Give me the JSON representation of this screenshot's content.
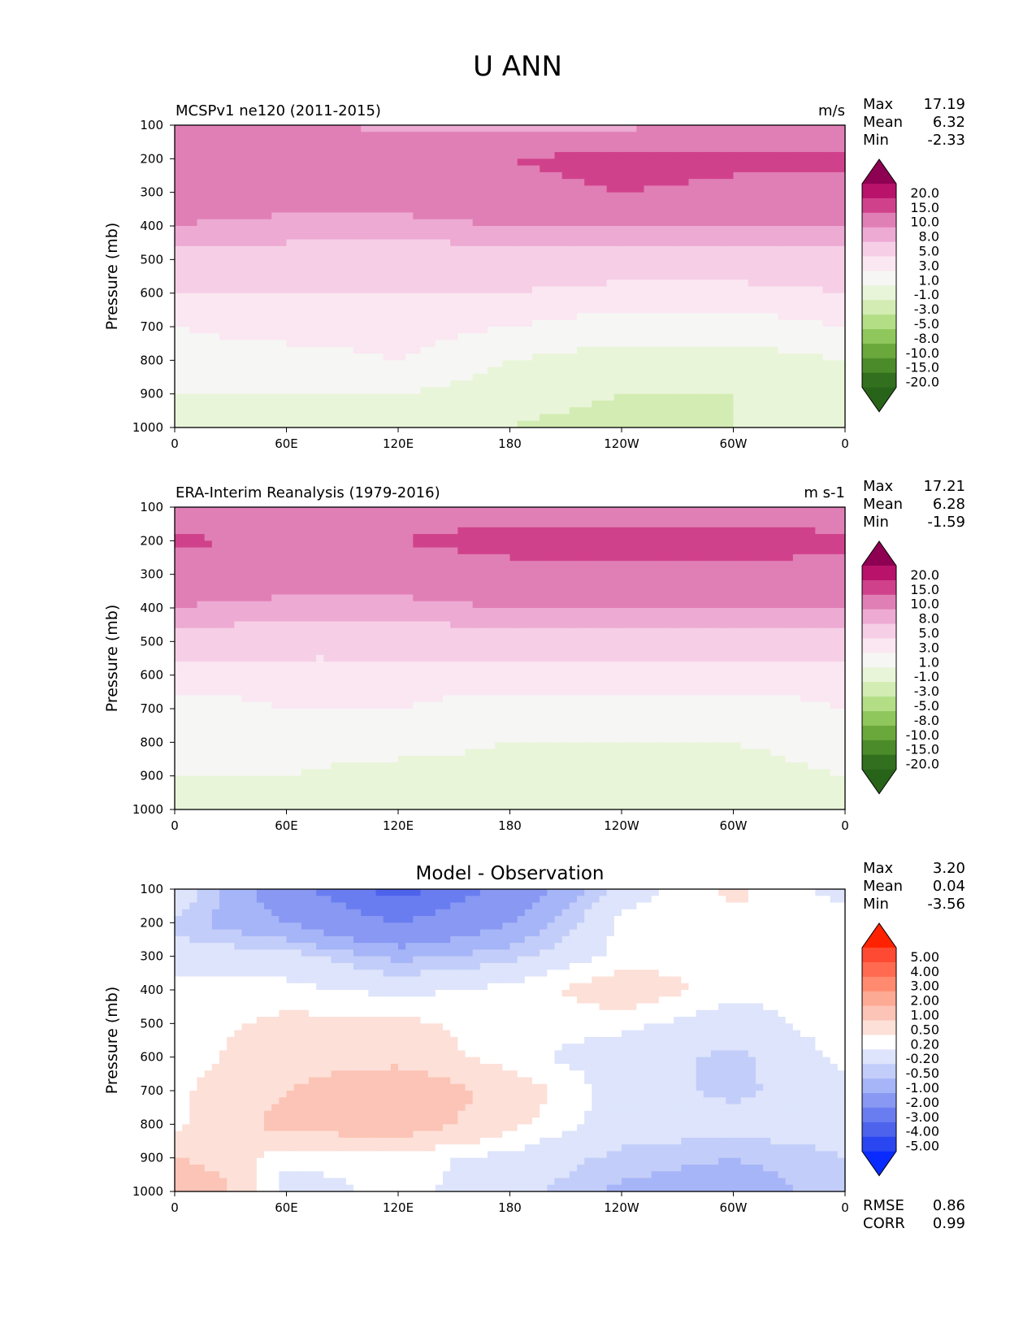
{
  "figure": {
    "title": "U ANN"
  },
  "x_ticks": [
    "0",
    "60E",
    "120E",
    "180",
    "120W",
    "60W",
    "0"
  ],
  "y_ticks": [
    "100",
    "200",
    "300",
    "400",
    "500",
    "600",
    "700",
    "800",
    "900",
    "1000"
  ],
  "ylabel": "Pressure (mb)",
  "field_colorbar": {
    "labels": [
      "20.0",
      "15.0",
      "10.0",
      "8.0",
      "5.0",
      "3.0",
      "1.0",
      "-1.0",
      "-3.0",
      "-5.0",
      "-8.0",
      "-10.0",
      "-15.0",
      "-20.0"
    ],
    "colors": [
      "#8e0152",
      "#b8126b",
      "#d0418c",
      "#e07fb5",
      "#edaad3",
      "#f6cfe6",
      "#fae7f2",
      "#f6f6f4",
      "#e9f5d9",
      "#d2ecb3",
      "#b3de86",
      "#8fc75c",
      "#6ba83c",
      "#4c8b2a",
      "#326f1e",
      "#276419"
    ]
  },
  "diff_colorbar": {
    "labels": [
      "5.00",
      "4.00",
      "3.00",
      "2.00",
      "1.00",
      "0.50",
      "0.20",
      "-0.20",
      "-0.50",
      "-1.00",
      "-2.00",
      "-3.00",
      "-4.00",
      "-5.00"
    ],
    "colors": [
      "#ff2200",
      "#ff4a33",
      "#ff6a50",
      "#ff8a70",
      "#fdaa94",
      "#fcc4b6",
      "#fde0d8",
      "#ffffff",
      "#dde4fb",
      "#c3cdf9",
      "#a6b5f7",
      "#8898f3",
      "#6a7df0",
      "#4d63ec",
      "#2a46f0",
      "#0a2bff"
    ]
  },
  "panels": [
    {
      "title": "MCSPv1 ne120 (2011-2015)",
      "units": "m/s",
      "stats": [
        {
          "label": "Max",
          "value": "17.19"
        },
        {
          "label": "Mean",
          "value": "6.32"
        },
        {
          "label": "Min",
          "value": "-2.33"
        }
      ]
    },
    {
      "title": "ERA-Interim Reanalysis (1979-2016)",
      "units": "m s-1",
      "stats": [
        {
          "label": "Max",
          "value": "17.21"
        },
        {
          "label": "Mean",
          "value": "6.28"
        },
        {
          "label": "Min",
          "value": "-1.59"
        }
      ]
    },
    {
      "title": "Model - Observation",
      "units": "",
      "stats": [
        {
          "label": "Max",
          "value": "3.20"
        },
        {
          "label": "Mean",
          "value": "0.04"
        },
        {
          "label": "Min",
          "value": "-3.56"
        }
      ],
      "metrics": [
        {
          "label": "RMSE",
          "value": "0.86"
        },
        {
          "label": "CORR",
          "value": "0.99"
        }
      ]
    }
  ],
  "chart_data": [
    {
      "type": "heatmap",
      "title": "MCSPv1 ne120 (2011-2015)",
      "units": "m/s",
      "x": [
        0,
        60,
        120,
        180,
        240,
        300,
        360
      ],
      "y": [
        100,
        200,
        300,
        400,
        500,
        600,
        700,
        800,
        900,
        1000
      ],
      "xlim": [
        0,
        360
      ],
      "ylim": [
        1000,
        100
      ],
      "levels": [
        -20,
        -15,
        -10,
        -8,
        -5,
        -3,
        -1,
        1,
        3,
        5,
        8,
        10,
        15,
        20
      ],
      "z": [
        [
          10,
          11,
          9,
          8,
          9,
          11,
          11
        ],
        [
          14,
          12,
          13,
          15,
          17,
          16,
          16
        ],
        [
          12,
          12,
          12,
          13,
          15,
          14,
          13
        ],
        [
          10,
          9,
          9,
          10,
          10,
          10,
          10
        ],
        [
          7,
          7,
          6,
          7,
          7,
          7,
          7
        ],
        [
          5,
          5,
          5,
          5,
          4,
          4,
          5
        ],
        [
          3,
          4,
          4,
          3,
          2,
          2,
          3
        ],
        [
          2,
          2,
          3,
          1,
          0,
          0,
          1
        ],
        [
          1,
          1,
          1,
          0,
          -1,
          -1,
          1
        ],
        [
          0,
          0,
          0,
          -1,
          -2,
          -1,
          0
        ]
      ]
    },
    {
      "type": "heatmap",
      "title": "ERA-Interim Reanalysis (1979-2016)",
      "units": "m s-1",
      "x": [
        0,
        60,
        120,
        180,
        240,
        300,
        360
      ],
      "y": [
        100,
        200,
        300,
        400,
        500,
        600,
        700,
        800,
        900,
        1000
      ],
      "xlim": [
        0,
        360
      ],
      "ylim": [
        1000,
        100
      ],
      "levels": [
        -20,
        -15,
        -10,
        -8,
        -5,
        -3,
        -1,
        1,
        3,
        5,
        8,
        10,
        15,
        20
      ],
      "z": [
        [
          11,
          12,
          13,
          12,
          12,
          12,
          12
        ],
        [
          16,
          14,
          15,
          17,
          17,
          17,
          16
        ],
        [
          12,
          12,
          12,
          13,
          14,
          14,
          13
        ],
        [
          10,
          9,
          9,
          10,
          10,
          10,
          10
        ],
        [
          7,
          6,
          6,
          7,
          7,
          7,
          7
        ],
        [
          4,
          4,
          4,
          4,
          4,
          4,
          4
        ],
        [
          2,
          3,
          3,
          2,
          2,
          2,
          3
        ],
        [
          2,
          2,
          2,
          1,
          1,
          1,
          2
        ],
        [
          1,
          1,
          0,
          0,
          0,
          0,
          1
        ],
        [
          0,
          0,
          0,
          0,
          -1,
          0,
          0
        ]
      ]
    },
    {
      "type": "heatmap",
      "title": "Model - Observation",
      "units": "",
      "x": [
        0,
        60,
        120,
        180,
        240,
        300,
        360
      ],
      "y": [
        100,
        200,
        300,
        400,
        500,
        600,
        700,
        800,
        900,
        1000
      ],
      "xlim": [
        0,
        360
      ],
      "ylim": [
        1000,
        100
      ],
      "levels": [
        -5,
        -4,
        -3,
        -2,
        -1,
        -0.5,
        -0.2,
        0.2,
        0.5,
        1,
        2,
        3,
        4,
        5
      ],
      "z": [
        [
          0.2,
          -1.5,
          -3.5,
          -1.5,
          0,
          0.6,
          0
        ],
        [
          -0.3,
          -1,
          -2,
          -1,
          0.3,
          0.4,
          0.5
        ],
        [
          0,
          0,
          -0.6,
          -0.3,
          0.3,
          0.5,
          0.4
        ],
        [
          0.3,
          0.3,
          0.1,
          0.3,
          0.8,
          0.3,
          0.3
        ],
        [
          0.3,
          0.6,
          0.6,
          0.3,
          0.3,
          0,
          0.4
        ],
        [
          0.3,
          0.8,
          0.8,
          0.3,
          0,
          -0.3,
          0.3
        ],
        [
          0.4,
          1,
          1.5,
          0.8,
          0,
          -0.3,
          0.1
        ],
        [
          0.4,
          1.2,
          1.4,
          0.6,
          0,
          0,
          0
        ],
        [
          1,
          0.3,
          0.3,
          0.1,
          -0.3,
          -0.5,
          -0.2
        ],
        [
          2,
          0,
          0.3,
          0,
          -0.6,
          -0.8,
          -0.3
        ]
      ]
    }
  ]
}
